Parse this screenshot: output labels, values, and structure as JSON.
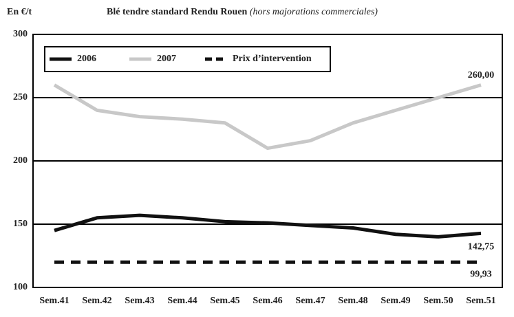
{
  "chart_data": {
    "type": "line",
    "title": "Blé tendre standard Rendu Rouen",
    "subtitle": "(hors majorations commerciales)",
    "y_label": "En €/t",
    "categories": [
      "Sem.41",
      "Sem.42",
      "Sem.43",
      "Sem.44",
      "Sem.45",
      "Sem.46",
      "Sem.47",
      "Sem.48",
      "Sem.49",
      "Sem.50",
      "Sem.51"
    ],
    "series": [
      {
        "name": "2006",
        "color": "#111111",
        "dash": false,
        "values": [
          145,
          155,
          157,
          155,
          152,
          151,
          149,
          147,
          142,
          140,
          142.75
        ],
        "value_labels": [
          null,
          null,
          null,
          null,
          null,
          null,
          null,
          null,
          null,
          null,
          "142,75"
        ]
      },
      {
        "name": "2007",
        "color": "#c8c8c8",
        "dash": false,
        "values": [
          260,
          240,
          235,
          233,
          230,
          210,
          216,
          230,
          240,
          250,
          260
        ],
        "value_labels": [
          null,
          null,
          null,
          null,
          null,
          null,
          null,
          null,
          null,
          null,
          "260,00"
        ]
      },
      {
        "name": "Prix d’intervention",
        "color": "#111111",
        "dash": true,
        "values": [
          120,
          120,
          120,
          120,
          120,
          120,
          120,
          120,
          120,
          120,
          120
        ]
      }
    ],
    "annotations": [
      "99,93"
    ],
    "ylim": [
      100,
      300
    ],
    "yticks": [
      100,
      150,
      200,
      250,
      300
    ],
    "grid": true
  }
}
